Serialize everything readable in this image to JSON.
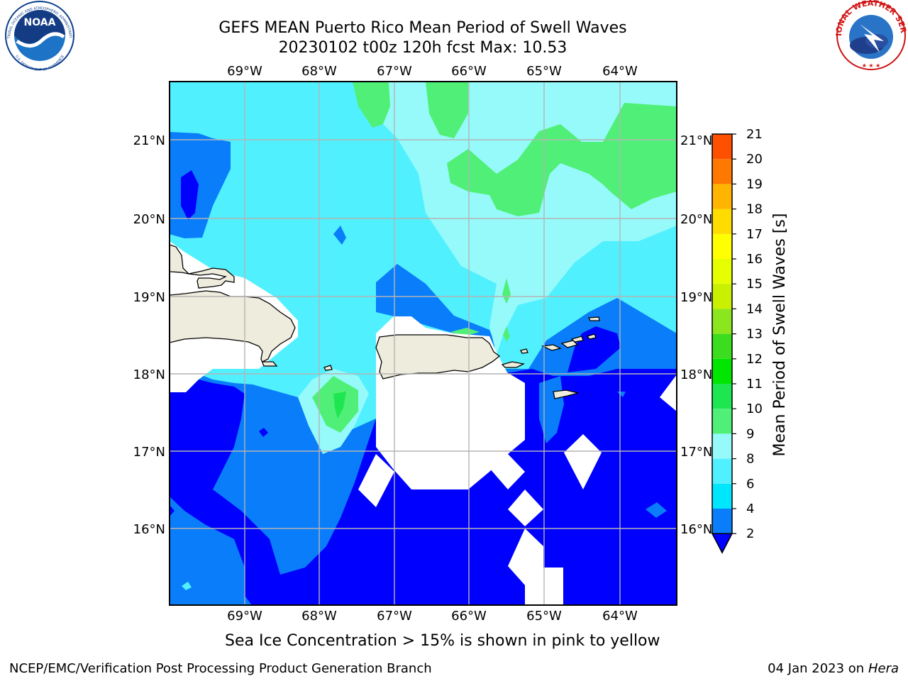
{
  "header": {
    "title_line1": "GEFS MEAN Puerto Rico Mean Period of Swell Waves",
    "title_line2": "20230102 t00z 120h fcst   Max: 10.53"
  },
  "logos": {
    "noaa_text": "NOAA",
    "noaa_ring_text": "NATIONAL OCEANIC AND ATMOSPHERIC ADMINISTRATION",
    "noaa_ring_bottom": "U.S. DEPARTMENT OF COMMERCE",
    "nws_ring_text": "NATIONAL WEATHER SERVICE"
  },
  "map": {
    "lon_ticks": [
      "69°W",
      "68°W",
      "67°W",
      "66°W",
      "65°W",
      "64°W"
    ],
    "lat_ticks": [
      "21°N",
      "20°N",
      "19°N",
      "18°N",
      "17°N",
      "16°N"
    ],
    "land_color": "#eeecdc",
    "no_data_color": "#ffffff",
    "grid_color": "#b4b4b4"
  },
  "colorbar": {
    "label": "Mean Period of Swell Waves [s]",
    "tick_labels": [
      "2",
      "4",
      "6",
      "8",
      "9",
      "10",
      "11",
      "12",
      "13",
      "14",
      "15",
      "16",
      "17",
      "18",
      "19",
      "20",
      "21"
    ],
    "levels": [
      2,
      4,
      6,
      8,
      9,
      10,
      11,
      12,
      13,
      14,
      15,
      16,
      17,
      18,
      19,
      20,
      21
    ],
    "colors": [
      "#0a7dfa",
      "#00e6ff",
      "#50f0ff",
      "#96fafa",
      "#50f078",
      "#1ee650",
      "#00e600",
      "#3cdc1e",
      "#8ce61e",
      "#c8f000",
      "#e6ff00",
      "#ffff00",
      "#ffdc00",
      "#ffb400",
      "#ff7800",
      "#ff5000",
      "#ff2800",
      "#ff0000"
    ],
    "under_color": "#0000ff"
  },
  "notes": {
    "ice_note": "Sea Ice Concentration > 15% is shown in pink to yellow"
  },
  "footer": {
    "left": "NCEP/EMC/Verification Post Processing Product Generation Branch",
    "right_prefix": "04 Jan 2023 on ",
    "right_machine": "Hera"
  }
}
